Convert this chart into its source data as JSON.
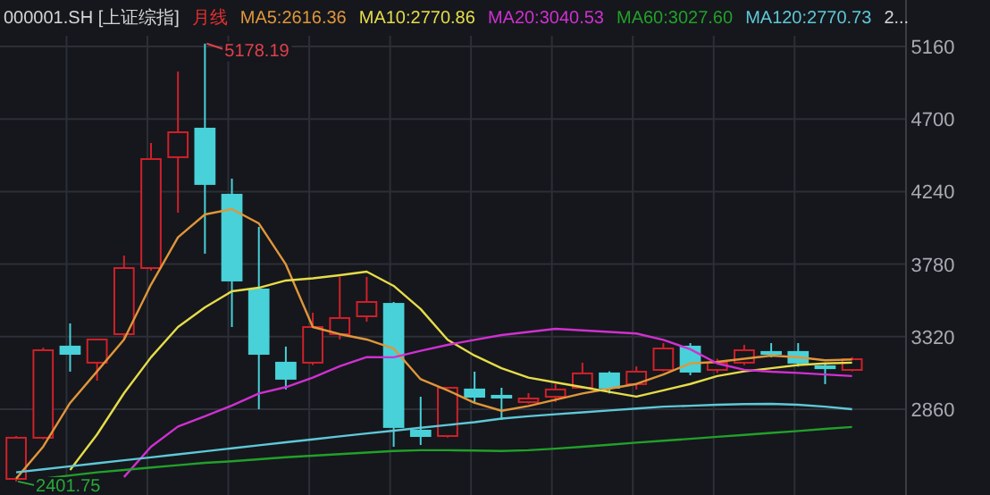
{
  "chart_data": {
    "type": "candlestick",
    "title": "000001.SH [上证综指]",
    "subtitle": "月线",
    "categories": [
      null,
      null,
      null,
      null,
      null,
      null,
      null,
      null,
      null,
      null,
      null,
      null,
      null,
      null,
      null,
      null,
      null,
      null,
      null,
      null,
      null,
      null,
      null,
      null,
      null,
      null,
      null,
      null,
      null,
      null,
      null,
      null
    ],
    "ohlc": [
      [
        2418,
        2690,
        2401.75,
        2679
      ],
      [
        2679,
        3250,
        2670,
        3234
      ],
      [
        3257,
        3404,
        3098,
        3211
      ],
      [
        3155,
        3302,
        3041,
        3302
      ],
      [
        3336,
        3834,
        3300,
        3755
      ],
      [
        3755,
        4548,
        3740,
        4446
      ],
      [
        4458,
        5001,
        4106,
        4616
      ],
      [
        4639,
        5178.19,
        3846,
        4288
      ],
      [
        4220,
        4322,
        3381,
        3676
      ],
      [
        3619,
        4016,
        2860,
        3211
      ],
      [
        3155,
        3257,
        2985,
        3053
      ],
      [
        3155,
        3472,
        3140,
        3381
      ],
      [
        3336,
        3699,
        3302,
        3438
      ],
      [
        3449,
        3699,
        3415,
        3540
      ],
      [
        3528,
        3540,
        2622,
        2747
      ],
      [
        2724,
        2939,
        2633,
        2690
      ],
      [
        2690,
        3000,
        2680,
        2996
      ],
      [
        2985,
        3098,
        2905,
        2939
      ],
      [
        2945,
        2996,
        2792,
        2935
      ],
      [
        2905,
        2962,
        2895,
        2928
      ],
      [
        2939,
        3019,
        2905,
        2985
      ],
      [
        2996,
        3155,
        2990,
        3087
      ],
      [
        3087,
        3100,
        2960,
        2996
      ],
      [
        3019,
        3132,
        2985,
        3098
      ],
      [
        3109,
        3279,
        3100,
        3245
      ],
      [
        3257,
        3279,
        3075,
        3098
      ],
      [
        3109,
        3180,
        3090,
        3155
      ],
      [
        3155,
        3268,
        3140,
        3234
      ],
      [
        3223,
        3279,
        3189,
        3211
      ],
      [
        3223,
        3279,
        3130,
        3155
      ],
      [
        3132,
        3155,
        3019,
        3120
      ],
      [
        3109,
        3190,
        3100,
        3177
      ]
    ],
    "colors": [
      "#d0202a",
      "#d0202a",
      "#48d1d8",
      "#d0202a",
      "#d0202a",
      "#d0202a",
      "#d0202a",
      "#48d1d8",
      "#48d1d8",
      "#48d1d8",
      "#48d1d8",
      "#d0202a",
      "#d0202a",
      "#d0202a",
      "#48d1d8",
      "#48d1d8",
      "#d0202a",
      "#48d1d8",
      "#48d1d8",
      "#d0202a",
      "#d0202a",
      "#d0202a",
      "#48d1d8",
      "#d0202a",
      "#d0202a",
      "#48d1d8",
      "#d0202a",
      "#d0202a",
      "#48d1d8",
      "#48d1d8",
      "#48d1d8",
      "#d0202a"
    ],
    "series": [
      {
        "name": "MA5:2616.36",
        "type": "line",
        "color": "#e0963a",
        "values": [
          2420,
          2622,
          2900,
          3100,
          3302,
          3650,
          3950,
          4095,
          4129,
          4038,
          3778,
          3381,
          3336,
          3302,
          3245,
          3050,
          2980,
          2900,
          2850,
          2880,
          2920,
          2960,
          2990,
          3020,
          3080,
          3150,
          3160,
          3180,
          3200,
          3190,
          3170,
          3175
        ]
      },
      {
        "name": "MA10:2770.86",
        "type": "line",
        "color": "#e6dc4a",
        "values": [
          null,
          null,
          2475,
          2700,
          2962,
          3189,
          3381,
          3506,
          3608,
          3630,
          3676,
          3690,
          3710,
          3732,
          3642,
          3495,
          3300,
          3200,
          3120,
          3060,
          3030,
          3000,
          2970,
          2940,
          2980,
          3020,
          3070,
          3100,
          3120,
          3140,
          3150,
          3155
        ]
      },
      {
        "name": "MA20:3040.53",
        "type": "line",
        "color": "#d030d0",
        "values": [
          null,
          null,
          null,
          null,
          2430,
          2622,
          2750,
          2815,
          2883,
          2960,
          3000,
          3060,
          3132,
          3190,
          3189,
          3230,
          3268,
          3300,
          3330,
          3350,
          3370,
          3360,
          3350,
          3340,
          3300,
          3240,
          3150,
          3110,
          3098,
          3090,
          3080,
          3070
        ]
      },
      {
        "name": "MA60:3027.60",
        "type": "line",
        "color": "#22a02a",
        "values": [
          null,
          2420,
          2440,
          2460,
          2475,
          2490,
          2505,
          2520,
          2530,
          2543,
          2555,
          2565,
          2575,
          2585,
          2595,
          2600,
          2600,
          2598,
          2595,
          2600,
          2610,
          2622,
          2635,
          2648,
          2660,
          2672,
          2685,
          2697,
          2710,
          2722,
          2735,
          2747
        ]
      },
      {
        "name": "MA120:2770.73",
        "type": "line",
        "color": "#5fc8d8",
        "values": [
          2460,
          2479,
          2498,
          2517,
          2536,
          2555,
          2574,
          2593,
          2612,
          2631,
          2650,
          2669,
          2688,
          2706,
          2724,
          2742,
          2760,
          2778,
          2800,
          2815,
          2828,
          2840,
          2852,
          2864,
          2876,
          2882,
          2888,
          2892,
          2894,
          2888,
          2876,
          2860
        ]
      }
    ],
    "ylim": [
      2316,
      5228
    ],
    "yticks": [
      2860,
      3320,
      3780,
      4240,
      4700,
      5160
    ],
    "grid": true,
    "legend": "top",
    "annotations": [
      "5178.19",
      "2401.75",
      "2..."
    ]
  }
}
